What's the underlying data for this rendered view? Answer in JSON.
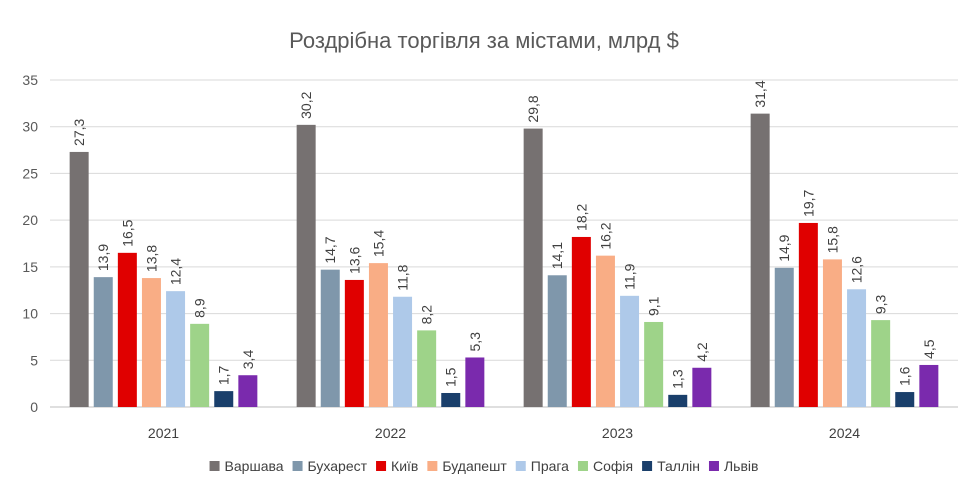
{
  "chart_data": {
    "type": "bar",
    "title": "Роздрібна торгівля за містами, млрд $",
    "categories": [
      "2021",
      "2022",
      "2023",
      "2024"
    ],
    "ylim": [
      0,
      35
    ],
    "yticks": [
      0,
      5,
      10,
      15,
      20,
      25,
      30,
      35
    ],
    "grid": true,
    "legend_position": "bottom",
    "series": [
      {
        "name": "Варшава",
        "color": "#767171",
        "values": [
          27.3,
          30.2,
          29.8,
          31.4
        ],
        "labels": [
          "27,3",
          "30,2",
          "29,8",
          "31,4"
        ]
      },
      {
        "name": "Бухарест",
        "color": "#7f97ab",
        "values": [
          13.9,
          14.7,
          14.1,
          14.9
        ],
        "labels": [
          "13,9",
          "14,7",
          "14,1",
          "14,9"
        ]
      },
      {
        "name": "Київ",
        "color": "#e00000",
        "values": [
          16.5,
          13.6,
          18.2,
          19.7
        ],
        "labels": [
          "16,5",
          "13,6",
          "18,2",
          "19,7"
        ]
      },
      {
        "name": "Будапешт",
        "color": "#f9ad85",
        "values": [
          13.8,
          15.4,
          16.2,
          15.8
        ],
        "labels": [
          "13,8",
          "15,4",
          "16,2",
          "15,8"
        ]
      },
      {
        "name": "Прага",
        "color": "#aec9e9",
        "values": [
          12.4,
          11.8,
          11.9,
          12.6
        ],
        "labels": [
          "12,4",
          "11,8",
          "11,9",
          "12,6"
        ]
      },
      {
        "name": "Софія",
        "color": "#9ed389",
        "values": [
          8.9,
          8.2,
          9.1,
          9.3
        ],
        "labels": [
          "8,9",
          "8,2",
          "9,1",
          "9,3"
        ]
      },
      {
        "name": "Таллін",
        "color": "#1a3f6b",
        "values": [
          1.7,
          1.5,
          1.3,
          1.6
        ],
        "labels": [
          "1,7",
          "1,5",
          "1,3",
          "1,6"
        ]
      },
      {
        "name": "Львів",
        "color": "#7a2aad",
        "values": [
          3.4,
          5.3,
          4.2,
          4.5
        ],
        "labels": [
          "3,4",
          "5,3",
          "4,2",
          "4,5"
        ]
      }
    ]
  }
}
